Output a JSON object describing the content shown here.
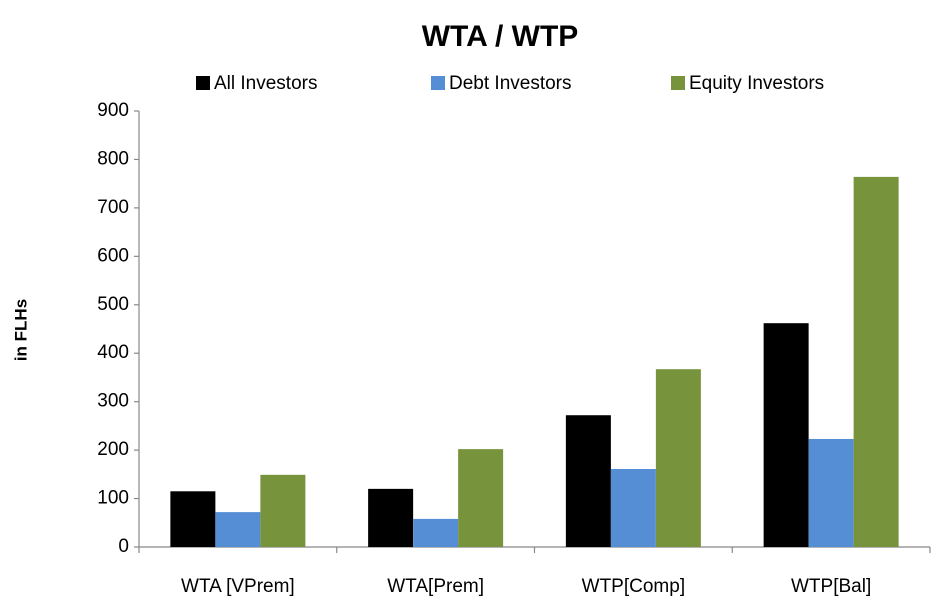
{
  "chart_data": {
    "type": "bar",
    "title": "WTA / WTP",
    "y_label": "in FLHs",
    "categories": [
      "WTA [VPrem]",
      "WTA[Prem]",
      "WTP[Comp]",
      "WTP[Bal]"
    ],
    "series": [
      {
        "name": "All Investors",
        "color": "#000000",
        "values": [
          115,
          120,
          272,
          462
        ]
      },
      {
        "name": "Debt Investors",
        "color": "#558ed5",
        "values": [
          72,
          58,
          161,
          223
        ]
      },
      {
        "name": "Equity Investors",
        "color": "#77933c",
        "values": [
          149,
          202,
          367,
          764
        ]
      }
    ],
    "ylim": [
      0,
      900
    ],
    "yticks": [
      0,
      100,
      200,
      300,
      400,
      500,
      600,
      700,
      800,
      900
    ],
    "grid": false,
    "legend": "top"
  }
}
